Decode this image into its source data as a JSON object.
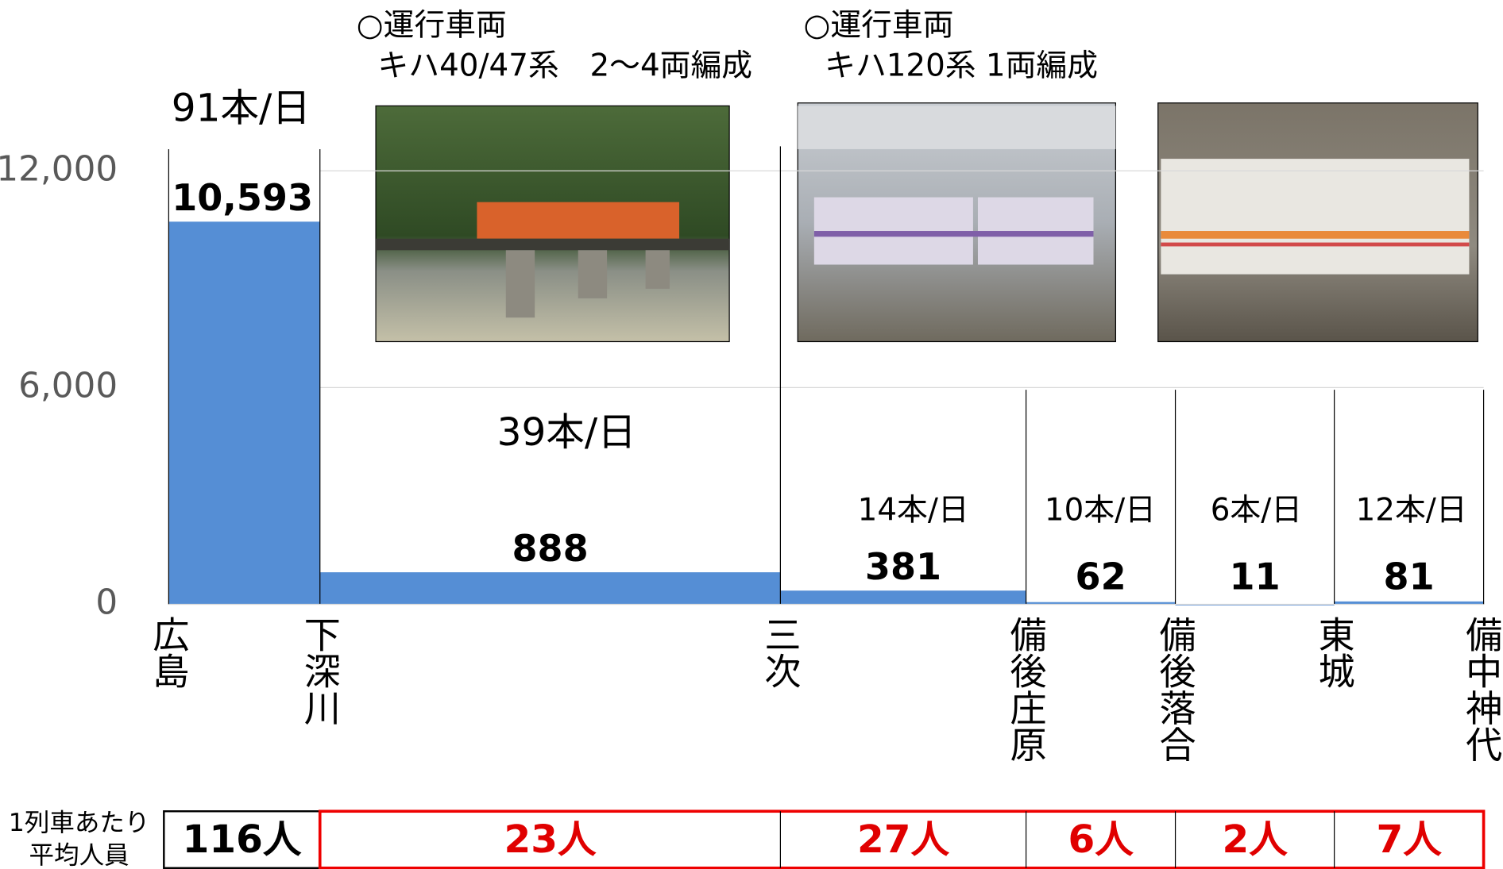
{
  "chart_data": {
    "type": "bar",
    "stations": [
      "広島",
      "下深川",
      "三次",
      "備後庄原",
      "備後落合",
      "東城",
      "備中神代"
    ],
    "values": [
      10593,
      888,
      381,
      62,
      11,
      81
    ],
    "value_labels": [
      "10,593",
      "888",
      "381",
      "62",
      "11",
      "81"
    ],
    "color": "#558ed5",
    "trains_per_day": [
      "91本/日",
      "39本/日",
      "14本/日",
      "10本/日",
      "6本/日",
      "12本/日"
    ],
    "ylim": [
      0,
      12600
    ],
    "yticks": [
      0,
      {
        "value": 6000,
        "label": "6,000"
      },
      {
        "value": 12000,
        "label": "12,000"
      }
    ],
    "grid": true,
    "annotations": [
      {
        "title": "○運行車両",
        "text": "キハ40/47系　2〜4両編成"
      },
      {
        "title": "○運行車両",
        "text": "キハ120系 1両編成"
      }
    ],
    "per_train": {
      "label_line1": "1列車あたり",
      "label_line2": "平均人員",
      "values": [
        "116人",
        "23人",
        "27人",
        "6人",
        "2人",
        "7人"
      ]
    }
  }
}
